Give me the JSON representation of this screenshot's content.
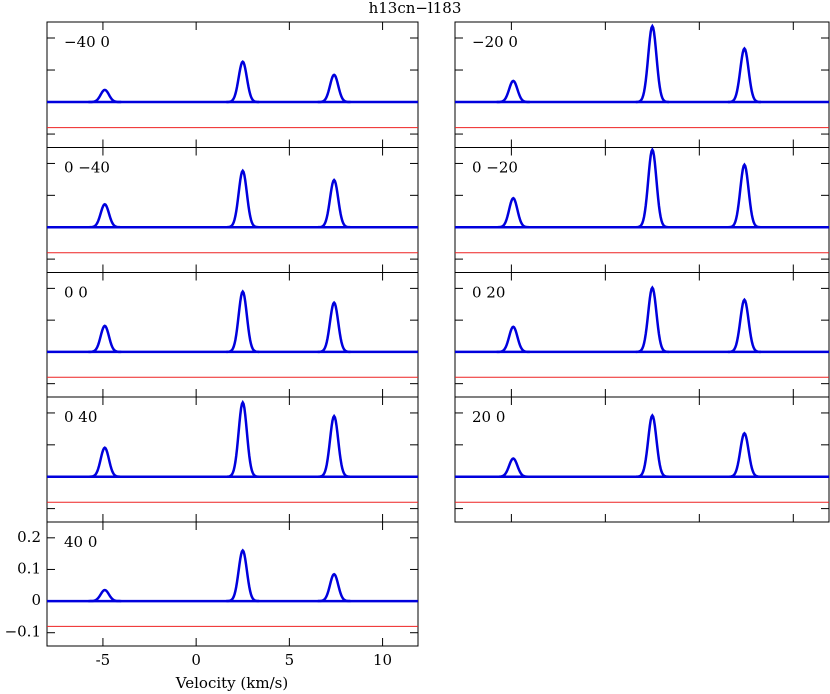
{
  "chart_data": {
    "type": "line",
    "title": "h13cn−l183",
    "x_label": "Velocity (km/s)",
    "xlim": [
      -8,
      11.9
    ],
    "xticks": [
      -5,
      0,
      5,
      10
    ],
    "ylim": [
      -0.142,
      0.25
    ],
    "yticks": [
      {
        "value": -0.1,
        "label": "−0.1"
      },
      0,
      0.1,
      0.2
    ],
    "fit_color": "#0000dd",
    "residual_color": "#ee2222",
    "residual_offset": -0.08,
    "peak_centers": [
      -4.9,
      2.5,
      7.4
    ],
    "peak_sigma": 0.22,
    "panels": [
      {
        "label": "−40 0",
        "values": [
          0.038,
          0.126,
          0.085
        ]
      },
      {
        "label": "0 −40",
        "values": [
          0.072,
          0.177,
          0.148
        ]
      },
      {
        "label": "0 0",
        "values": [
          0.082,
          0.19,
          0.155
        ]
      },
      {
        "label": "0 40",
        "values": [
          0.091,
          0.233,
          0.19
        ]
      },
      {
        "label": "40 0",
        "values": [
          0.035,
          0.16,
          0.085
        ]
      },
      {
        "label": "−20 0",
        "values": [
          0.066,
          0.237,
          0.167
        ]
      },
      {
        "label": "0 −20",
        "values": [
          0.091,
          0.243,
          0.196
        ]
      },
      {
        "label": "0 20",
        "values": [
          0.079,
          0.202,
          0.164
        ]
      },
      {
        "label": "20 0",
        "values": [
          0.057,
          0.192,
          0.136
        ]
      }
    ]
  }
}
